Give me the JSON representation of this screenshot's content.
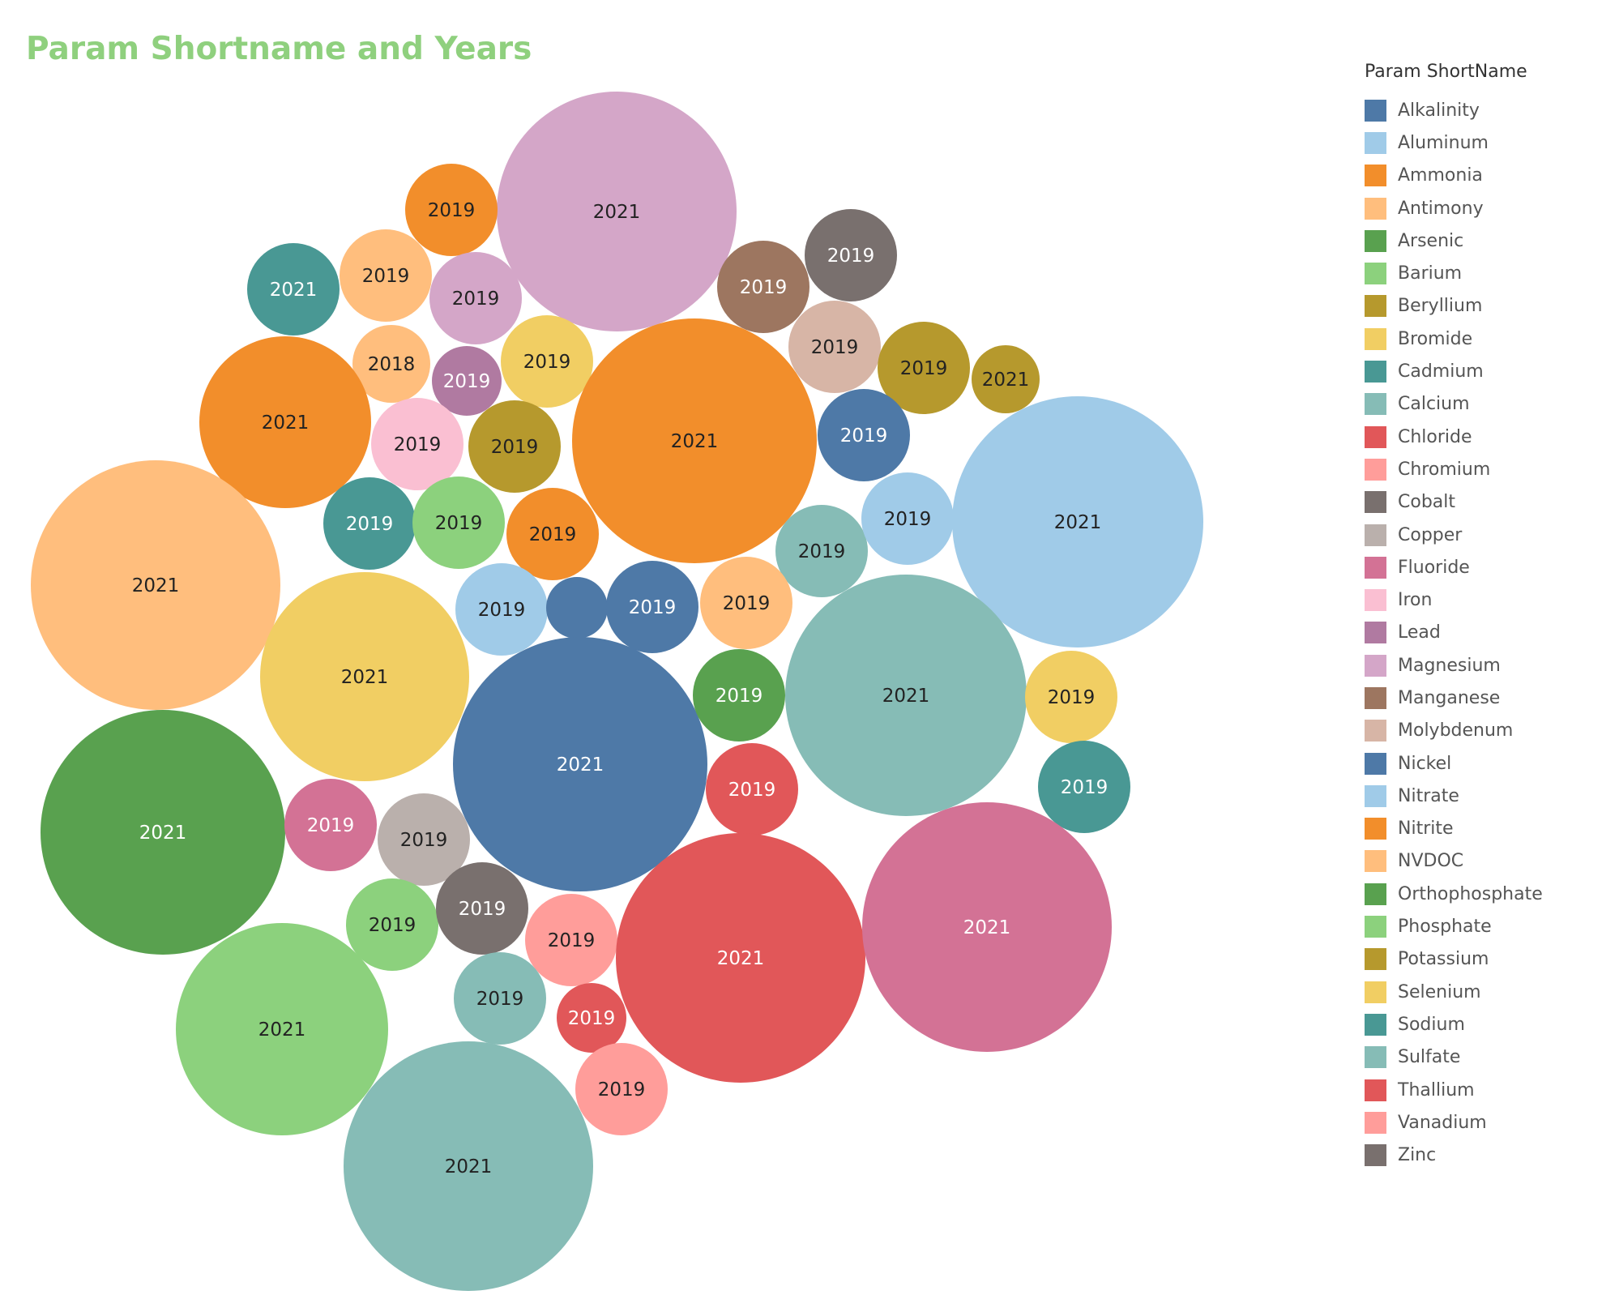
{
  "title": "Param Shortname and Years",
  "legend": {
    "title": "Param ShortName",
    "items": [
      {
        "name": "Alkalinity",
        "color": "#4e79a7"
      },
      {
        "name": "Aluminum",
        "color": "#a0cbe8"
      },
      {
        "name": "Ammonia",
        "color": "#f28e2b"
      },
      {
        "name": "Antimony",
        "color": "#ffbe7d"
      },
      {
        "name": "Arsenic",
        "color": "#59a14f"
      },
      {
        "name": "Barium",
        "color": "#8cd17d"
      },
      {
        "name": "Beryllium",
        "color": "#b6992d"
      },
      {
        "name": "Bromide",
        "color": "#f1ce63"
      },
      {
        "name": "Cadmium",
        "color": "#499894"
      },
      {
        "name": "Calcium",
        "color": "#86bcb6"
      },
      {
        "name": "Chloride",
        "color": "#e15759"
      },
      {
        "name": "Chromium",
        "color": "#ff9d9a"
      },
      {
        "name": "Cobalt",
        "color": "#79706e"
      },
      {
        "name": "Copper",
        "color": "#bab0ac"
      },
      {
        "name": "Fluoride",
        "color": "#d37295"
      },
      {
        "name": "Iron",
        "color": "#fabfd2"
      },
      {
        "name": "Lead",
        "color": "#b07aa1"
      },
      {
        "name": "Magnesium",
        "color": "#d4a6c8"
      },
      {
        "name": "Manganese",
        "color": "#9d7660"
      },
      {
        "name": "Molybdenum",
        "color": "#d7b5a6"
      },
      {
        "name": "Nickel",
        "color": "#4e79a7"
      },
      {
        "name": "Nitrate",
        "color": "#a0cbe8"
      },
      {
        "name": "Nitrite",
        "color": "#f28e2b"
      },
      {
        "name": "NVDOC",
        "color": "#ffbe7d"
      },
      {
        "name": "Orthophosphate",
        "color": "#59a14f"
      },
      {
        "name": "Phosphate",
        "color": "#8cd17d"
      },
      {
        "name": "Potassium",
        "color": "#b6992d"
      },
      {
        "name": "Selenium",
        "color": "#f1ce63"
      },
      {
        "name": "Sodium",
        "color": "#499894"
      },
      {
        "name": "Sulfate",
        "color": "#86bcb6"
      },
      {
        "name": "Thallium",
        "color": "#e15759"
      },
      {
        "name": "Vanadium",
        "color": "#ff9d9a"
      },
      {
        "name": "Zinc",
        "color": "#79706e"
      }
    ]
  },
  "chart_data": {
    "type": "bubble",
    "title": "Param Shortname and Years",
    "color_legend": "Param ShortName",
    "bubbles": [
      {
        "label": "2021",
        "color": "#d4a6c8",
        "size": 1.0
      },
      {
        "label": "2019",
        "color": "#f28e2b",
        "size": 0.14
      },
      {
        "label": "2019",
        "color": "#ffbe7d",
        "size": 0.145
      },
      {
        "label": "2021",
        "color": "#499894",
        "size": 0.145
      },
      {
        "label": "2019",
        "color": "#d4a6c8",
        "size": 0.145
      },
      {
        "label": "2019",
        "color": "#9d7660",
        "size": 0.145
      },
      {
        "label": "2019",
        "color": "#79706e",
        "size": 0.145
      },
      {
        "label": "2018",
        "color": "#ffbe7d",
        "size": 0.11
      },
      {
        "label": "2019",
        "color": "#b07aa1",
        "size": 0.085
      },
      {
        "label": "2019",
        "color": "#f1ce63",
        "size": 0.145
      },
      {
        "label": "2021",
        "color": "#f28e2b",
        "size": 0.5
      },
      {
        "label": "2021",
        "color": "#f28e2b",
        "size": 1.03
      },
      {
        "label": "2019",
        "color": "#d7b5a6",
        "size": 0.145
      },
      {
        "label": "2019",
        "color": "#b6992d",
        "size": 0.145
      },
      {
        "label": "2021",
        "color": "#b6992d",
        "size": 0.085
      },
      {
        "label": "2019",
        "color": "#fabfd2",
        "size": 0.145
      },
      {
        "label": "2019",
        "color": "#b6992d",
        "size": 0.145
      },
      {
        "label": "2019",
        "color": "#4e79a7",
        "size": 0.145
      },
      {
        "label": "2021",
        "color": "#ffbe7d",
        "size": 1.07
      },
      {
        "label": "2019",
        "color": "#499894",
        "size": 0.145
      },
      {
        "label": "2019",
        "color": "#8cd17d",
        "size": 0.145
      },
      {
        "label": "2019",
        "color": "#f28e2b",
        "size": 0.145
      },
      {
        "label": "2019",
        "color": "#86bcb6",
        "size": 0.145
      },
      {
        "label": "2019",
        "color": "#a0cbe8",
        "size": 0.145
      },
      {
        "label": "2021",
        "color": "#a0cbe8",
        "size": 1.07
      },
      {
        "label": "2021",
        "color": "#f1ce63",
        "size": 0.76
      },
      {
        "label": "2019",
        "color": "#a0cbe8",
        "size": 0.145
      },
      {
        "label": "",
        "color": "#4e79a7",
        "size": 0.06
      },
      {
        "label": "2019",
        "color": "#4e79a7",
        "size": 0.145
      },
      {
        "label": "2019",
        "color": "#ffbe7d",
        "size": 0.145
      },
      {
        "label": "2021",
        "color": "#4e79a7",
        "size": 1.12
      },
      {
        "label": "2019",
        "color": "#59a14f",
        "size": 0.145
      },
      {
        "label": "2021",
        "color": "#86bcb6",
        "size": 1.01
      },
      {
        "label": "2019",
        "color": "#f1ce63",
        "size": 0.145
      },
      {
        "label": "2021",
        "color": "#59a14f",
        "size": 1.05
      },
      {
        "label": "2019",
        "color": "#d37295",
        "size": 0.145
      },
      {
        "label": "2019",
        "color": "#bab0ac",
        "size": 0.145
      },
      {
        "label": "2019",
        "color": "#e15759",
        "size": 0.145
      },
      {
        "label": "2019",
        "color": "#499894",
        "size": 0.145
      },
      {
        "label": "2019",
        "color": "#8cd17d",
        "size": 0.145
      },
      {
        "label": "2019",
        "color": "#79706e",
        "size": 0.145
      },
      {
        "label": "2019",
        "color": "#ff9d9a",
        "size": 0.145
      },
      {
        "label": "2021",
        "color": "#e15759",
        "size": 1.08
      },
      {
        "label": "2021",
        "color": "#d37295",
        "size": 1.08
      },
      {
        "label": "2021",
        "color": "#8cd17d",
        "size": 0.8
      },
      {
        "label": "2019",
        "color": "#86bcb6",
        "size": 0.145
      },
      {
        "label": "2019",
        "color": "#e15759",
        "size": 0.085
      },
      {
        "label": "2019",
        "color": "#ff9d9a",
        "size": 0.145
      },
      {
        "label": "2021",
        "color": "#86bcb6",
        "size": 1.09
      }
    ]
  }
}
